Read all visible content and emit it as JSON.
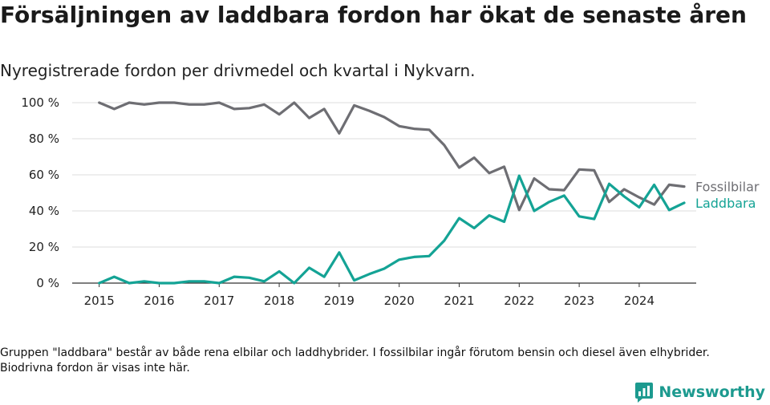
{
  "title": "Försäljningen av laddbara fordon har ökat de senaste åren",
  "subtitle": "Nyregistrerade fordon per drivmedel och kvartal i Nykvarn.",
  "footnote": "Gruppen \"laddbara\" består av både rena elbilar och laddhybrider. I fossilbilar ingår förutom bensin och diesel även elhybrider. Biodrivna fordon är visas inte här.",
  "brand": {
    "name": "Newsworthy",
    "icon": "bar-chart-logo-icon",
    "color": "#1c9a8f"
  },
  "chart_data": {
    "type": "line",
    "title": "Försäljningen av laddbara fordon har ökat de senaste åren",
    "xlabel": "",
    "ylabel": "",
    "x_start": 2015.0,
    "x_step": 0.25,
    "xlim": [
      2014.55,
      2024.95
    ],
    "ylim": [
      0,
      100
    ],
    "y_ticks": [
      0,
      20,
      40,
      60,
      80,
      100
    ],
    "y_tick_labels": [
      "0 %",
      "20 %",
      "40 %",
      "60 %",
      "80 %",
      "100 %"
    ],
    "x_ticks": [
      2015,
      2016,
      2017,
      2018,
      2019,
      2020,
      2021,
      2022,
      2023,
      2024
    ],
    "x_tick_labels": [
      "2015",
      "2016",
      "2017",
      "2018",
      "2019",
      "2020",
      "2021",
      "2022",
      "2023",
      "2024"
    ],
    "grid": true,
    "legend": "inline-right",
    "series": [
      {
        "name": "Fossilbilar",
        "color": "#6e6e73",
        "values": [
          100,
          96.5,
          100,
          99,
          100,
          100,
          99,
          99,
          100,
          96.5,
          97,
          99,
          93.5,
          100,
          91.5,
          96.5,
          83,
          98.5,
          95.5,
          92,
          87,
          85.5,
          85,
          76.5,
          64,
          69.5,
          61,
          64.5,
          40.5,
          58,
          52,
          51.5,
          63,
          62.5,
          45,
          52,
          47.5,
          43.5,
          54.5,
          53.5
        ]
      },
      {
        "name": "Laddbara",
        "color": "#14a395",
        "values": [
          0,
          3.5,
          0,
          1,
          0,
          0,
          1,
          1,
          0,
          3.5,
          3,
          1,
          6.5,
          0,
          8.5,
          3.5,
          17,
          1.5,
          5,
          8,
          13,
          14.5,
          15,
          23.5,
          36,
          30.5,
          37.5,
          34,
          59.5,
          40,
          45,
          48.5,
          37,
          35.5,
          55,
          48,
          42,
          54.5,
          40.5,
          44.5
        ]
      }
    ]
  }
}
